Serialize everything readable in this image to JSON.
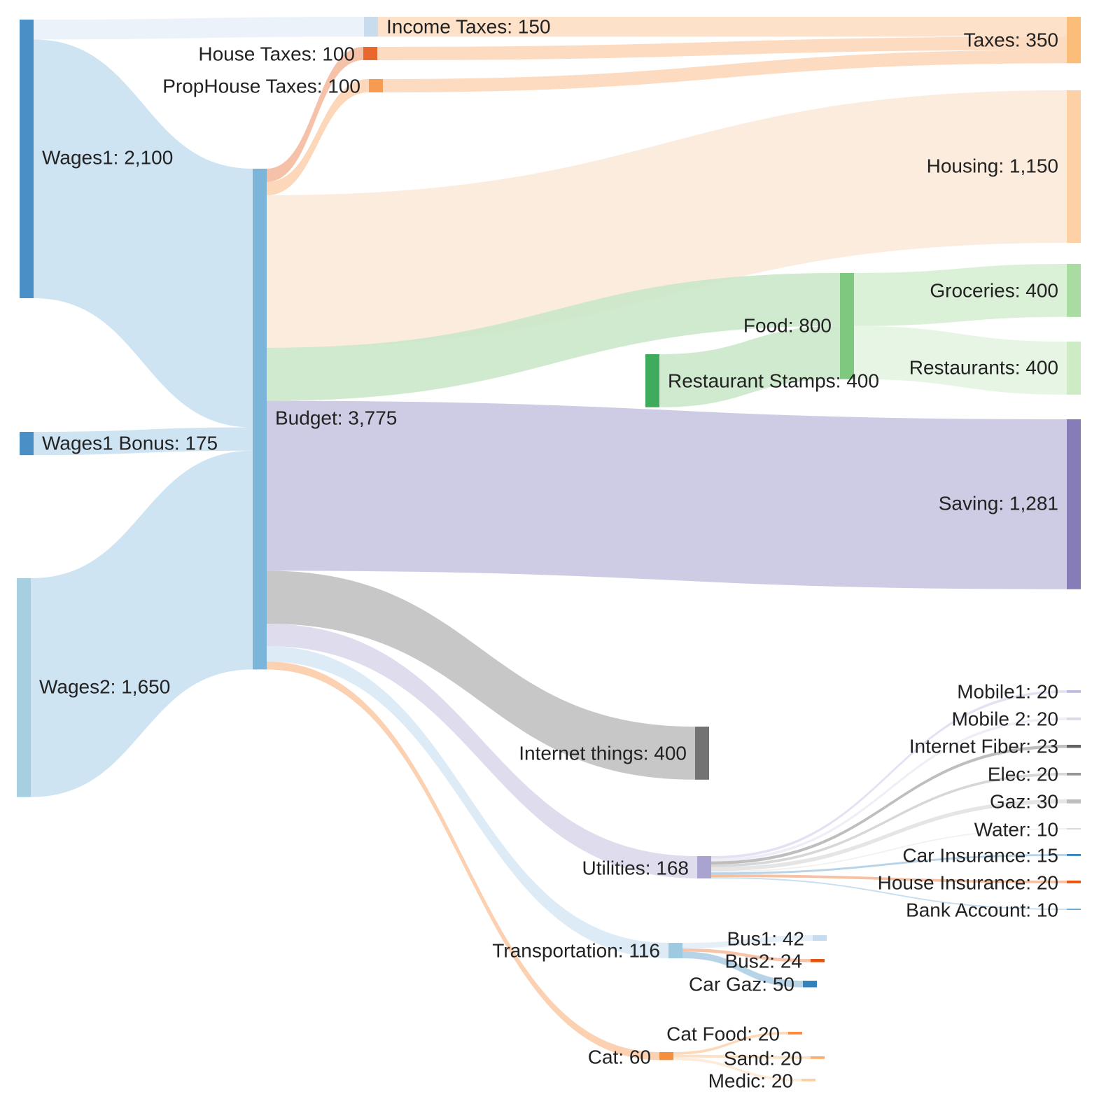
{
  "chart_data": {
    "type": "sankey",
    "nodes": [
      {
        "id": "wages1",
        "label": "Wages1: 2,100",
        "name": "Wages1",
        "value": 2100,
        "color": "#4a8fc6"
      },
      {
        "id": "bonus",
        "label": "Wages1 Bonus: 175",
        "name": "Wages1 Bonus",
        "value": 175,
        "color": "#4a8fc6"
      },
      {
        "id": "wages2",
        "label": "Wages2: 1,650",
        "name": "Wages2",
        "value": 1650,
        "color": "#a6cfe2"
      },
      {
        "id": "income_taxes",
        "label": "Income Taxes: 150",
        "name": "Income Taxes",
        "value": 150,
        "color": "#c9dcee"
      },
      {
        "id": "house_taxes",
        "label": "House Taxes: 100",
        "name": "House Taxes",
        "value": 100,
        "color": "#e8672a"
      },
      {
        "id": "prophouse_taxes",
        "label": "PropHouse Taxes: 100",
        "name": "PropHouse Taxes",
        "value": 100,
        "color": "#f79b51"
      },
      {
        "id": "budget",
        "label": "Budget: 3,775",
        "name": "Budget",
        "value": 3775,
        "color": "#7cb5da"
      },
      {
        "id": "taxes",
        "label": "Taxes: 350",
        "name": "Taxes",
        "value": 350,
        "color": "#fbbd7a"
      },
      {
        "id": "housing",
        "label": "Housing: 1,150",
        "name": "Housing",
        "value": 1150,
        "color": "#fdd0a5"
      },
      {
        "id": "food",
        "label": "Food: 800",
        "name": "Food",
        "value": 800,
        "color": "#7fc87f"
      },
      {
        "id": "stamps",
        "label": "Restaurant Stamps: 400",
        "name": "Restaurant Stamps",
        "value": 400,
        "color": "#41ab5d"
      },
      {
        "id": "groceries",
        "label": "Groceries: 400",
        "name": "Groceries",
        "value": 400,
        "color": "#a8dca0"
      },
      {
        "id": "restaurants",
        "label": "Restaurants: 400",
        "name": "Restaurants",
        "value": 400,
        "color": "#cdecc5"
      },
      {
        "id": "saving",
        "label": "Saving: 1,281",
        "name": "Saving",
        "value": 1281,
        "color": "#857cb8"
      },
      {
        "id": "internet_things",
        "label": "Internet things: 400",
        "name": "Internet things",
        "value": 400,
        "color": "#737373"
      },
      {
        "id": "utilities",
        "label": "Utilities: 168",
        "name": "Utilities",
        "value": 168,
        "color": "#a9a3d1"
      },
      {
        "id": "transportation",
        "label": "Transportation: 116",
        "name": "Transportation",
        "value": 116,
        "color": "#9ecae1"
      },
      {
        "id": "cat",
        "label": "Cat: 60",
        "name": "Cat",
        "value": 60,
        "color": "#f58f3d"
      },
      {
        "id": "mobile1",
        "label": "Mobile1: 20",
        "name": "Mobile1",
        "value": 20,
        "color": "#bcbddc"
      },
      {
        "id": "mobile2",
        "label": "Mobile 2: 20",
        "name": "Mobile 2",
        "value": 20,
        "color": "#dadaeb"
      },
      {
        "id": "fiber",
        "label": "Internet Fiber: 23",
        "name": "Internet Fiber",
        "value": 23,
        "color": "#636363"
      },
      {
        "id": "elec",
        "label": "Elec: 20",
        "name": "Elec",
        "value": 20,
        "color": "#969696"
      },
      {
        "id": "gaz",
        "label": "Gaz: 30",
        "name": "Gaz",
        "value": 30,
        "color": "#bdbdbd"
      },
      {
        "id": "water",
        "label": "Water: 10",
        "name": "Water",
        "value": 10,
        "color": "#d9d9d9"
      },
      {
        "id": "car_ins",
        "label": "Car Insurance: 15",
        "name": "Car Insurance",
        "value": 15,
        "color": "#3182bd"
      },
      {
        "id": "house_ins",
        "label": "House Insurance: 20",
        "name": "House Insurance",
        "value": 20,
        "color": "#e6550d"
      },
      {
        "id": "bank",
        "label": "Bank Account: 10",
        "name": "Bank Account",
        "value": 10,
        "color": "#6baed6"
      },
      {
        "id": "bus1",
        "label": "Bus1: 42",
        "name": "Bus1",
        "value": 42,
        "color": "#c6dbef"
      },
      {
        "id": "bus2",
        "label": "Bus2: 24",
        "name": "Bus2",
        "value": 24,
        "color": "#e6550d"
      },
      {
        "id": "cargaz",
        "label": "Car Gaz: 50",
        "name": "Car Gaz",
        "value": 50,
        "color": "#3182bd"
      },
      {
        "id": "catfood",
        "label": "Cat Food: 20",
        "name": "Cat Food",
        "value": 20,
        "color": "#fd8d3c"
      },
      {
        "id": "sand",
        "label": "Sand: 20",
        "name": "Sand",
        "value": 20,
        "color": "#fdae6b"
      },
      {
        "id": "medic",
        "label": "Medic: 20",
        "name": "Medic",
        "value": 20,
        "color": "#fdd0a2"
      }
    ],
    "links": [
      {
        "source": "wages1",
        "target": "income_taxes",
        "value": 150,
        "color": "#e7f0f9"
      },
      {
        "source": "wages1",
        "target": "budget",
        "value": 1950,
        "color": "#c5dff0"
      },
      {
        "source": "bonus",
        "target": "budget",
        "value": 175,
        "color": "#c5dff0"
      },
      {
        "source": "wages2",
        "target": "budget",
        "value": 1650,
        "color": "#c5dff0"
      },
      {
        "source": "income_taxes",
        "target": "taxes",
        "value": 150,
        "color": "#fddcbf"
      },
      {
        "source": "house_taxes",
        "target": "taxes",
        "value": 100,
        "color": "#fcd5b6"
      },
      {
        "source": "prophouse_taxes",
        "target": "taxes",
        "value": 100,
        "color": "#fcd5b6"
      },
      {
        "source": "budget",
        "target": "house_taxes",
        "value": 100,
        "color": "#f3b79a"
      },
      {
        "source": "budget",
        "target": "prophouse_taxes",
        "value": 100,
        "color": "#fcd0ad"
      },
      {
        "source": "budget",
        "target": "housing",
        "value": 1150,
        "color": "#fce9d8"
      },
      {
        "source": "budget",
        "target": "food",
        "value": 400,
        "color": "#c7e6c7"
      },
      {
        "source": "budget",
        "target": "saving",
        "value": 1281,
        "color": "#c6c3df"
      },
      {
        "source": "budget",
        "target": "internet_things",
        "value": 400,
        "color": "#bdbdbd"
      },
      {
        "source": "budget",
        "target": "utilities",
        "value": 168,
        "color": "#d8d6ea"
      },
      {
        "source": "budget",
        "target": "transportation",
        "value": 116,
        "color": "#d6e8f3"
      },
      {
        "source": "budget",
        "target": "cat",
        "value": 60,
        "color": "#fcc9a3"
      },
      {
        "source": "stamps",
        "target": "food",
        "value": 400,
        "color": "#c7e6c7"
      },
      {
        "source": "food",
        "target": "groceries",
        "value": 400,
        "color": "#d5efd0"
      },
      {
        "source": "food",
        "target": "restaurants",
        "value": 400,
        "color": "#e3f4df"
      },
      {
        "source": "utilities",
        "target": "mobile1",
        "value": 20,
        "color": "#dedcf0"
      },
      {
        "source": "utilities",
        "target": "mobile2",
        "value": 20,
        "color": "#ebebf5"
      },
      {
        "source": "utilities",
        "target": "fiber",
        "value": 23,
        "color": "#b3b3b3"
      },
      {
        "source": "utilities",
        "target": "elec",
        "value": 20,
        "color": "#d0d0d0"
      },
      {
        "source": "utilities",
        "target": "gaz",
        "value": 30,
        "color": "#e0e0e0"
      },
      {
        "source": "utilities",
        "target": "water",
        "value": 10,
        "color": "#eeeeee"
      },
      {
        "source": "utilities",
        "target": "car_ins",
        "value": 15,
        "color": "#a9cbe4"
      },
      {
        "source": "utilities",
        "target": "house_ins",
        "value": 20,
        "color": "#f5b592"
      },
      {
        "source": "utilities",
        "target": "bank",
        "value": 10,
        "color": "#bcd8ec"
      },
      {
        "source": "transportation",
        "target": "bus1",
        "value": 42,
        "color": "#e0ecf7"
      },
      {
        "source": "transportation",
        "target": "bus2",
        "value": 24,
        "color": "#f6b99a"
      },
      {
        "source": "transportation",
        "target": "cargaz",
        "value": 50,
        "color": "#a9cbe4"
      },
      {
        "source": "cat",
        "target": "catfood",
        "value": 20,
        "color": "#fdd1ad"
      },
      {
        "source": "cat",
        "target": "sand",
        "value": 20,
        "color": "#fdd9b9"
      },
      {
        "source": "cat",
        "target": "medic",
        "value": 20,
        "color": "#fee8d2"
      }
    ]
  }
}
